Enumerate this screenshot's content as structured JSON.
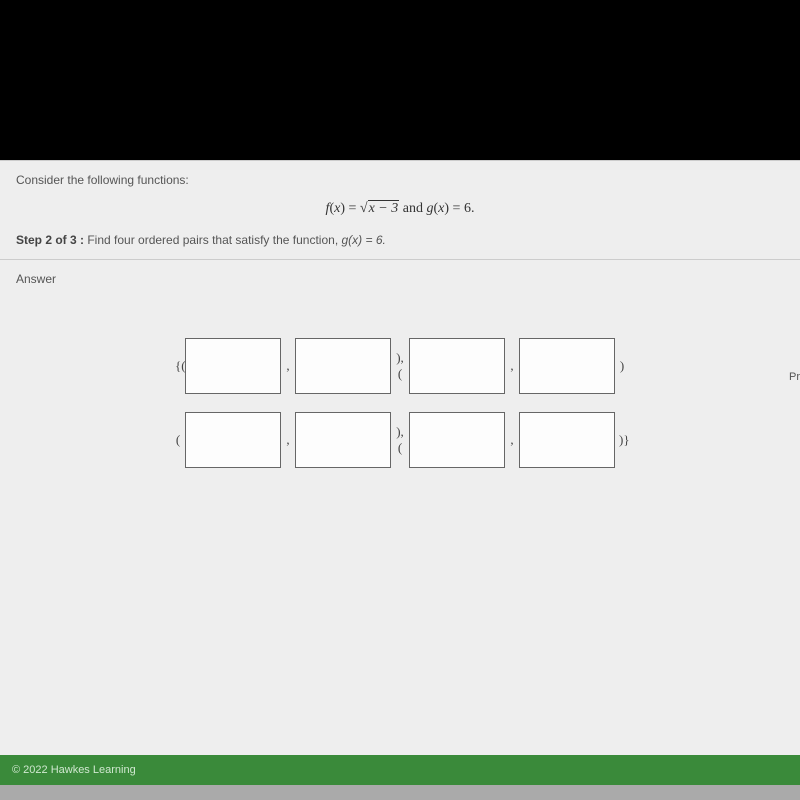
{
  "page": {
    "prompt": "Consider the following functions:",
    "equation": {
      "f_label": "f",
      "g_label": "g",
      "var": "x",
      "eq": " = ",
      "f_inner": "x − 3",
      "conj": " and ",
      "g_val": "6.",
      "g_val_plain": "6"
    },
    "step": {
      "label": "Step 2 of 3 :",
      "text": "  Find four ordered pairs that satisfy the function, ",
      "eq_g": "g(x) = 6."
    },
    "answer_label": "Answer",
    "side_tab": "Pr",
    "delims": {
      "open_set": "{(",
      "open_paren": "(",
      "comma": ",",
      "close_open": "), (",
      "close_paren": ")",
      "close_set": ")}"
    },
    "footer": "© 2022 Hawkes Learning",
    "colors": {
      "background": "#eeeeee",
      "box_border": "#666666",
      "box_bg": "#fdfdfd",
      "footer_bg": "#3a8a3a",
      "text": "#555555"
    }
  }
}
